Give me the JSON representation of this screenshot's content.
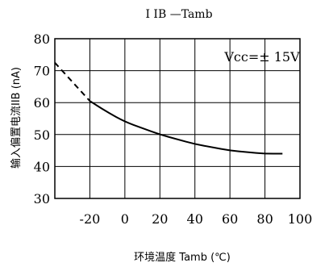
{
  "chart_data": {
    "type": "line",
    "title": "I IB —Tamb",
    "xlabel": "环境温度 Tamb (℃)",
    "ylabel": "输入偏置电流IIB (nA)",
    "annotation": "Vcc=± 15V",
    "xlim": [
      -40,
      100
    ],
    "ylim": [
      30,
      80
    ],
    "xticks": [
      -20,
      0,
      20,
      40,
      60,
      80,
      100
    ],
    "yticks": [
      30,
      40,
      50,
      60,
      70,
      80
    ],
    "grid": true,
    "series": [
      {
        "style": "dashed",
        "x": [
          -40,
          -30,
          -20
        ],
        "y": [
          72.5,
          66.5,
          60.5
        ]
      },
      {
        "style": "solid",
        "x": [
          -20,
          -10,
          0,
          10,
          20,
          30,
          40,
          50,
          60,
          70,
          80,
          90
        ],
        "y": [
          60.5,
          57,
          54,
          52,
          50,
          48.5,
          47,
          46,
          45,
          44.5,
          44,
          44
        ]
      }
    ]
  }
}
